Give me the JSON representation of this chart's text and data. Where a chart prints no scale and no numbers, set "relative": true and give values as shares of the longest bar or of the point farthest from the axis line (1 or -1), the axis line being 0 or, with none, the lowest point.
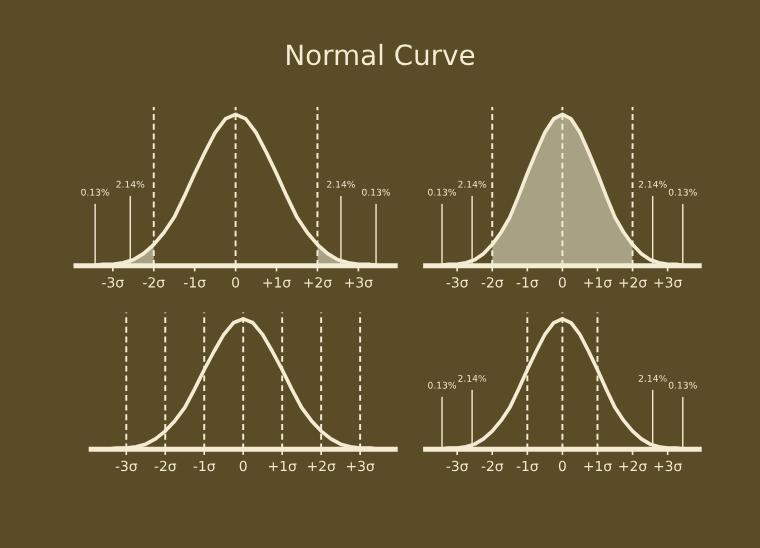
{
  "chart_data": [
    {
      "type": "line",
      "title": "Normal Curve",
      "relative": true,
      "xlim": [
        -3.9,
        3.9
      ],
      "xticks": [
        {
          "value": -3,
          "label": "-3σ"
        },
        {
          "value": -2,
          "label": "-2σ"
        },
        {
          "value": -1,
          "label": "-1σ"
        },
        {
          "value": 0,
          "label": "0"
        },
        {
          "value": 1,
          "label": "+1σ"
        },
        {
          "value": 2,
          "label": "+2σ"
        },
        {
          "value": 3,
          "label": "+3σ"
        }
      ],
      "series": [
        {
          "type": "area",
          "color": "#a9a184",
          "x": [
            -3.75,
            -3.5,
            -3.25,
            -3,
            -2.75,
            -2.5,
            -2.25,
            -2
          ],
          "values": [
            0,
            0,
            0.01,
            0.01,
            0.02,
            0.04,
            0.08,
            0.14
          ]
        },
        {
          "type": "area",
          "color": "#a9a184",
          "x": [
            2,
            2.25,
            2.5,
            2.75,
            3,
            3.25,
            3.5,
            3.75
          ],
          "values": [
            0.14,
            0.08,
            0.04,
            0.02,
            0.01,
            0.01,
            0,
            0
          ]
        },
        {
          "color": "#f3ecd2",
          "x": [
            -3.75,
            -3.5,
            -3.25,
            -3,
            -2.75,
            -2.5,
            -2.25,
            -2,
            -1.75,
            -1.5,
            -1.25,
            -1,
            -0.75,
            -0.5,
            -0.25,
            0,
            0.25,
            0.5,
            0.75,
            1,
            1.25,
            1.5,
            1.75,
            2,
            2.25,
            2.5,
            2.75,
            3,
            3.25,
            3.5,
            3.75
          ],
          "values": [
            0,
            0,
            0.01,
            0.01,
            0.02,
            0.04,
            0.08,
            0.14,
            0.22,
            0.32,
            0.46,
            0.61,
            0.75,
            0.88,
            0.97,
            1,
            0.97,
            0.88,
            0.75,
            0.61,
            0.46,
            0.32,
            0.22,
            0.14,
            0.08,
            0.04,
            0.02,
            0.01,
            0.01,
            0,
            0
          ]
        }
      ],
      "ref_lines": [
        {
          "axis": "x",
          "value": -2,
          "line_style": "dashed",
          "color": "#f3ecd2"
        },
        {
          "axis": "x",
          "value": 0,
          "line_style": "dashed",
          "color": "#f3ecd2"
        },
        {
          "axis": "x",
          "value": 2,
          "line_style": "dashed",
          "color": "#f3ecd2"
        }
      ],
      "annotations": [
        "0.13%",
        "2.14%",
        "2.14%",
        "0.13%"
      ]
    },
    {
      "type": "line",
      "relative": true,
      "xlim": [
        -3.9,
        3.9
      ],
      "xticks": [
        {
          "value": -3,
          "label": "-3σ"
        },
        {
          "value": -2,
          "label": "-2σ"
        },
        {
          "value": -1,
          "label": "-1σ"
        },
        {
          "value": 0,
          "label": "0"
        },
        {
          "value": 1,
          "label": "+1σ"
        },
        {
          "value": 2,
          "label": "+2σ"
        },
        {
          "value": 3,
          "label": "+3σ"
        }
      ],
      "series": [
        {
          "type": "area",
          "color": "#a9a184",
          "x": [
            -2,
            -1.75,
            -1.5,
            -1.25,
            -1,
            -0.75,
            -0.5,
            -0.25,
            0,
            0.25,
            0.5,
            0.75,
            1,
            1.25,
            1.5,
            1.75,
            2
          ],
          "values": [
            0.14,
            0.22,
            0.32,
            0.46,
            0.61,
            0.75,
            0.88,
            0.97,
            1,
            0.97,
            0.88,
            0.75,
            0.61,
            0.46,
            0.32,
            0.22,
            0.14
          ]
        },
        {
          "color": "#f3ecd2",
          "x": [
            -3.75,
            -3.5,
            -3.25,
            -3,
            -2.75,
            -2.5,
            -2.25,
            -2,
            -1.75,
            -1.5,
            -1.25,
            -1,
            -0.75,
            -0.5,
            -0.25,
            0,
            0.25,
            0.5,
            0.75,
            1,
            1.25,
            1.5,
            1.75,
            2,
            2.25,
            2.5,
            2.75,
            3,
            3.25,
            3.5,
            3.75
          ],
          "values": [
            0,
            0,
            0.01,
            0.01,
            0.02,
            0.04,
            0.08,
            0.14,
            0.22,
            0.32,
            0.46,
            0.61,
            0.75,
            0.88,
            0.97,
            1,
            0.97,
            0.88,
            0.75,
            0.61,
            0.46,
            0.32,
            0.22,
            0.14,
            0.08,
            0.04,
            0.02,
            0.01,
            0.01,
            0,
            0
          ]
        }
      ],
      "ref_lines": [
        {
          "axis": "x",
          "value": -2,
          "line_style": "dashed",
          "color": "#f3ecd2"
        },
        {
          "axis": "x",
          "value": 0,
          "line_style": "dashed",
          "color": "#f3ecd2"
        },
        {
          "axis": "x",
          "value": 2,
          "line_style": "dashed",
          "color": "#f3ecd2"
        }
      ],
      "annotations": [
        "0.13%",
        "2.14%",
        "2.14%",
        "0.13%"
      ]
    },
    {
      "type": "line",
      "relative": true,
      "xlim": [
        -3.9,
        3.9
      ],
      "xticks": [
        {
          "value": -3,
          "label": "-3σ"
        },
        {
          "value": -2,
          "label": "-2σ"
        },
        {
          "value": -1,
          "label": "-1σ"
        },
        {
          "value": 0,
          "label": "0"
        },
        {
          "value": 1,
          "label": "+1σ"
        },
        {
          "value": 2,
          "label": "+2σ"
        },
        {
          "value": 3,
          "label": "+3σ"
        }
      ],
      "series": [
        {
          "color": "#f3ecd2",
          "x": [
            -3.75,
            -3.5,
            -3.25,
            -3,
            -2.75,
            -2.5,
            -2.25,
            -2,
            -1.75,
            -1.5,
            -1.25,
            -1,
            -0.75,
            -0.5,
            -0.25,
            0,
            0.25,
            0.5,
            0.75,
            1,
            1.25,
            1.5,
            1.75,
            2,
            2.25,
            2.5,
            2.75,
            3,
            3.25,
            3.5,
            3.75
          ],
          "values": [
            0,
            0,
            0.01,
            0.01,
            0.02,
            0.04,
            0.08,
            0.14,
            0.22,
            0.32,
            0.46,
            0.61,
            0.75,
            0.88,
            0.97,
            1,
            0.97,
            0.88,
            0.75,
            0.61,
            0.46,
            0.32,
            0.22,
            0.14,
            0.08,
            0.04,
            0.02,
            0.01,
            0.01,
            0,
            0
          ]
        }
      ],
      "ref_lines": [
        {
          "axis": "x",
          "value": -3,
          "line_style": "dashed",
          "color": "#f3ecd2"
        },
        {
          "axis": "x",
          "value": -2,
          "line_style": "dashed",
          "color": "#f3ecd2"
        },
        {
          "axis": "x",
          "value": -1,
          "line_style": "dashed",
          "color": "#f3ecd2"
        },
        {
          "axis": "x",
          "value": 0,
          "line_style": "dashed",
          "color": "#f3ecd2"
        },
        {
          "axis": "x",
          "value": 1,
          "line_style": "dashed",
          "color": "#f3ecd2"
        },
        {
          "axis": "x",
          "value": 2,
          "line_style": "dashed",
          "color": "#f3ecd2"
        },
        {
          "axis": "x",
          "value": 3,
          "line_style": "dashed",
          "color": "#f3ecd2"
        }
      ]
    },
    {
      "type": "line",
      "relative": true,
      "xlim": [
        -3.9,
        3.9
      ],
      "xticks": [
        {
          "value": -3,
          "label": "-3σ"
        },
        {
          "value": -2,
          "label": "-2σ"
        },
        {
          "value": -1,
          "label": "-1σ"
        },
        {
          "value": 0,
          "label": "0"
        },
        {
          "value": 1,
          "label": "+1σ"
        },
        {
          "value": 2,
          "label": "+2σ"
        },
        {
          "value": 3,
          "label": "+3σ"
        }
      ],
      "series": [
        {
          "color": "#f3ecd2",
          "x": [
            -3.75,
            -3.5,
            -3.25,
            -3,
            -2.75,
            -2.5,
            -2.25,
            -2,
            -1.75,
            -1.5,
            -1.25,
            -1,
            -0.75,
            -0.5,
            -0.25,
            0,
            0.25,
            0.5,
            0.75,
            1,
            1.25,
            1.5,
            1.75,
            2,
            2.25,
            2.5,
            2.75,
            3,
            3.25,
            3.5,
            3.75
          ],
          "values": [
            0,
            0,
            0.01,
            0.01,
            0.02,
            0.04,
            0.08,
            0.14,
            0.22,
            0.32,
            0.46,
            0.61,
            0.75,
            0.88,
            0.97,
            1,
            0.97,
            0.88,
            0.75,
            0.61,
            0.46,
            0.32,
            0.22,
            0.14,
            0.08,
            0.04,
            0.02,
            0.01,
            0.01,
            0,
            0
          ]
        }
      ],
      "ref_lines": [
        {
          "axis": "x",
          "value": -1,
          "line_style": "dashed",
          "color": "#f3ecd2"
        },
        {
          "axis": "x",
          "value": 0,
          "line_style": "dashed",
          "color": "#f3ecd2"
        },
        {
          "axis": "x",
          "value": 1,
          "line_style": "dashed",
          "color": "#f3ecd2"
        }
      ],
      "annotations": [
        "0.13%",
        "2.14%",
        "2.14%",
        "0.13%"
      ]
    }
  ]
}
